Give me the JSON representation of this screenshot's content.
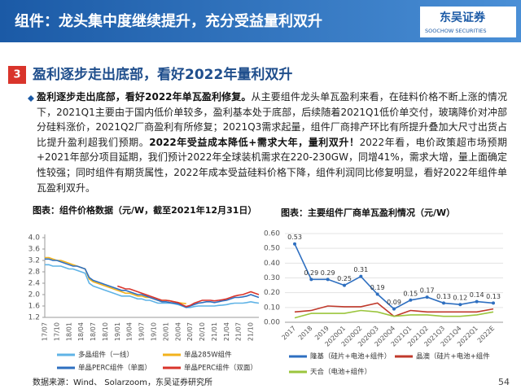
{
  "header": {
    "title": "组件：龙头集中度继续提升，充分受益量利双升",
    "logo": "东吴证券",
    "logo_en": "SOOCHOW SECURITIES"
  },
  "section": {
    "number": "3",
    "title": "盈利逐步走出底部，看好2022年量利双升"
  },
  "paragraph": [
    {
      "text": "盈利逐步走出底部，看好2022年单瓦盈利修复。",
      "bold": true
    },
    {
      "text": "从主要组件龙头单瓦盈利来看，在硅料价格不断上涨的情况下，2021Q1主要由于国内低价单较多，盈利基本处于底部，后续随着2021Q1低价单交付，玻璃降价对冲部分硅料涨价，2021Q2厂商盈利有所修复；2021Q3需求起量，组件厂商排产环比有所提升叠加大尺寸出货占比提升盈利超我们预期。",
      "bold": false
    },
    {
      "text": "2022年受益成本降低+需求大年，量利双升！",
      "bold": true
    },
    {
      "text": "2022年看，电价政策超市场预期+2021年部分项目延期，我们预计2022年全球装机需求在220-230GW，同增41%，需求大增，量上面确定性较强；同时组件有期货属性，2022年成本受益硅料价格下降，组件利润同比修复明显，看好2022年组件单瓦盈利双升。",
      "bold": false
    }
  ],
  "chart_data": [
    {
      "type": "line",
      "title": "图表：组件价格数据（元/W，截至2021年12月31日）",
      "categories": [
        "17/07",
        null,
        null,
        "17/10",
        null,
        null,
        "18/01",
        null,
        null,
        "18/04",
        null,
        null,
        "18/07",
        null,
        null,
        "18/10",
        null,
        null,
        "19/01",
        null,
        null,
        "19/04",
        null,
        null,
        "19/07",
        null,
        null,
        "19/10",
        null,
        null,
        "20/01",
        null,
        null,
        "20/04",
        null,
        null,
        "20/07",
        null,
        null,
        "20/10",
        null,
        null,
        "21/01",
        null,
        null,
        "21/04",
        null,
        null,
        "21/07",
        null,
        null,
        "21/10",
        null,
        null
      ],
      "ylim": [
        1.2,
        4.0
      ],
      "yticks": [
        {
          "value": 1.2,
          "label": "1.2"
        },
        {
          "value": 1.6,
          "label": "1.6"
        },
        {
          "value": 2.0,
          "label": "2.0"
        },
        {
          "value": 2.4,
          "label": "2.4"
        },
        {
          "value": 2.8,
          "label": "2.8"
        },
        {
          "value": 3.2,
          "label": "3.2"
        },
        {
          "value": 3.6,
          "label": "3.6"
        },
        {
          "value": 4.0,
          "label": "4.0"
        }
      ],
      "grid": false,
      "series": [
        {
          "name": "多晶组件（一线）",
          "color": "#5fb3e6",
          "values": [
            3.05,
            3.05,
            3.0,
            3.0,
            3.0,
            2.95,
            2.9,
            2.9,
            2.85,
            2.8,
            2.75,
            2.4,
            2.3,
            2.25,
            2.2,
            2.15,
            2.1,
            2.05,
            2.0,
            1.95,
            1.95,
            1.95,
            1.9,
            1.85,
            1.85,
            1.8,
            1.8,
            1.75,
            1.7,
            1.7,
            1.7,
            1.7,
            1.68,
            1.65,
            1.6,
            1.55,
            1.55,
            1.58,
            1.6,
            1.6,
            1.6,
            1.6,
            1.6,
            1.62,
            1.63,
            1.65,
            1.68,
            1.7,
            1.7,
            1.7,
            1.72,
            1.75,
            1.72,
            1.7
          ]
        },
        {
          "name": "单晶285W组件",
          "color": "#f2b21c",
          "values": [
            3.3,
            3.3,
            3.25,
            3.2,
            3.2,
            3.15,
            3.1,
            3.05,
            3.0,
            2.95,
            2.9,
            2.55,
            2.45,
            2.4,
            2.35,
            2.3,
            2.25,
            2.2,
            2.15,
            2.1,
            2.05,
            2.05,
            2.0,
            1.95,
            1.95,
            1.9,
            1.9,
            1.85,
            1.8,
            1.8,
            1.8,
            1.78,
            1.75,
            1.72,
            1.7,
            1.68,
            null,
            null,
            null,
            null,
            null,
            null,
            null,
            null,
            null,
            null,
            null,
            null,
            null,
            null,
            null,
            null,
            null,
            null
          ]
        },
        {
          "name": "单晶PERC组件（单面）",
          "color": "#2e6fc0",
          "values": [
            3.25,
            3.25,
            3.2,
            3.2,
            3.15,
            3.1,
            3.05,
            3.0,
            3.0,
            2.95,
            2.9,
            2.6,
            2.5,
            2.45,
            2.4,
            2.35,
            2.3,
            2.25,
            2.2,
            2.15,
            2.15,
            2.1,
            2.05,
            2.0,
            2.0,
            1.95,
            1.9,
            1.85,
            1.8,
            1.75,
            1.75,
            1.72,
            1.7,
            1.68,
            1.62,
            1.55,
            1.6,
            1.65,
            1.7,
            1.72,
            1.75,
            1.75,
            1.72,
            1.75,
            1.78,
            1.8,
            1.85,
            1.9,
            1.9,
            1.92,
            1.95,
            2.0,
            1.95,
            1.9
          ]
        },
        {
          "name": "单晶PERC组件（双面）",
          "color": "#d9342b",
          "values": [
            null,
            null,
            null,
            null,
            null,
            null,
            null,
            null,
            null,
            null,
            null,
            null,
            null,
            null,
            null,
            null,
            null,
            null,
            2.3,
            2.25,
            2.2,
            2.2,
            2.15,
            2.1,
            2.05,
            2.0,
            1.95,
            1.9,
            1.85,
            1.8,
            1.8,
            1.78,
            1.75,
            1.72,
            1.65,
            1.58,
            1.62,
            1.7,
            1.75,
            1.8,
            1.8,
            1.8,
            1.78,
            1.8,
            1.82,
            1.85,
            1.9,
            1.95,
            1.98,
            2.0,
            2.05,
            2.1,
            2.05,
            2.0
          ]
        }
      ]
    },
    {
      "type": "line",
      "title": "图表：主要组件厂商单瓦盈利情况（元/W）",
      "categories": [
        "2017",
        "2018",
        "2019",
        "2020Q1",
        "2020Q2",
        "2020Q3",
        "2020Q4",
        "2021Q1",
        "2021Q2",
        "2021Q3",
        "2021Q4",
        "2022Q1",
        "2022E"
      ],
      "ylim": [
        0,
        0.6
      ],
      "yticks": [
        {
          "value": 0,
          "label": "0.00"
        },
        {
          "value": 0.1,
          "label": "0.10"
        },
        {
          "value": 0.2,
          "label": "0.20"
        },
        {
          "value": 0.3,
          "label": "0.30"
        },
        {
          "value": 0.4,
          "label": "0.40"
        },
        {
          "value": 0.5,
          "label": "0.50"
        },
        {
          "value": 0.6,
          "label": "0.60"
        }
      ],
      "grid": true,
      "series": [
        {
          "name": "隆基（硅片+电池+组件）",
          "color": "#2e6fc0",
          "show_values": true,
          "values": [
            0.53,
            0.29,
            0.29,
            0.25,
            0.31,
            0.19,
            0.09,
            0.15,
            0.17,
            0.13,
            0.12,
            0.14,
            0.13
          ]
        },
        {
          "name": "晶澳（硅片+电池+组件",
          "color": "#c0392b",
          "values": [
            0.07,
            0.08,
            0.11,
            0.105,
            0.105,
            0.13,
            0.04,
            0.08,
            0.07,
            0.07,
            0.07,
            0.07,
            0.09
          ]
        },
        {
          "name": "天合（电池+组件）",
          "color": "#9bc53d",
          "values": [
            0.03,
            0.06,
            0.06,
            0.06,
            0.08,
            0.07,
            0.04,
            0.05,
            0.05,
            0.04,
            0.04,
            0.05,
            0.07
          ]
        }
      ]
    }
  ],
  "footer": {
    "source": "数据来源：Wind、 Solarzoom，东吴证券研究所",
    "page": "54"
  }
}
